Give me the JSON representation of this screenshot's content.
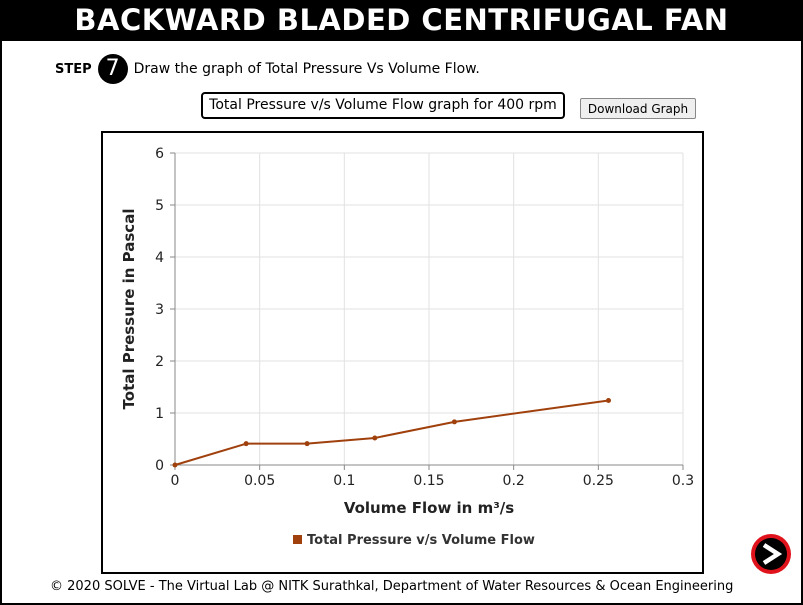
{
  "header": {
    "title": "BACKWARD BLADED CENTRIFUGAL FAN"
  },
  "step": {
    "label": "STEP",
    "number": "7",
    "instruction": "Draw the graph of Total Pressure Vs Volume Flow."
  },
  "graph_caption": "Total Pressure v/s Volume Flow graph for 400 rpm",
  "download_label": "Download Graph",
  "footer": "© 2020 SOLVE - The Virtual Lab @ NITK Surathkal, Department of Water Resources & Ocean Engineering",
  "colors": {
    "series": "#a0410d",
    "next_outer": "#e0121b"
  },
  "icons": {
    "next": "arrow-right-icon"
  },
  "chart_data": {
    "type": "line",
    "title": "",
    "xlabel": "Volume Flow in m³/s",
    "ylabel": "Total Pressure in Pascal",
    "xlim": [
      0,
      0.3
    ],
    "ylim": [
      0,
      6
    ],
    "xticks": [
      "0",
      "0.05",
      "0.1",
      "0.15",
      "0.2",
      "0.25",
      "0.3"
    ],
    "yticks": [
      "0",
      "1",
      "2",
      "3",
      "4",
      "5",
      "6"
    ],
    "grid": true,
    "legend": "bottom",
    "series": [
      {
        "name": "Total Pressure v/s Volume Flow",
        "x": [
          0,
          0.042,
          0.078,
          0.118,
          0.165,
          0.256
        ],
        "y": [
          0.0,
          0.41,
          0.41,
          0.52,
          0.83,
          1.24
        ]
      }
    ]
  }
}
